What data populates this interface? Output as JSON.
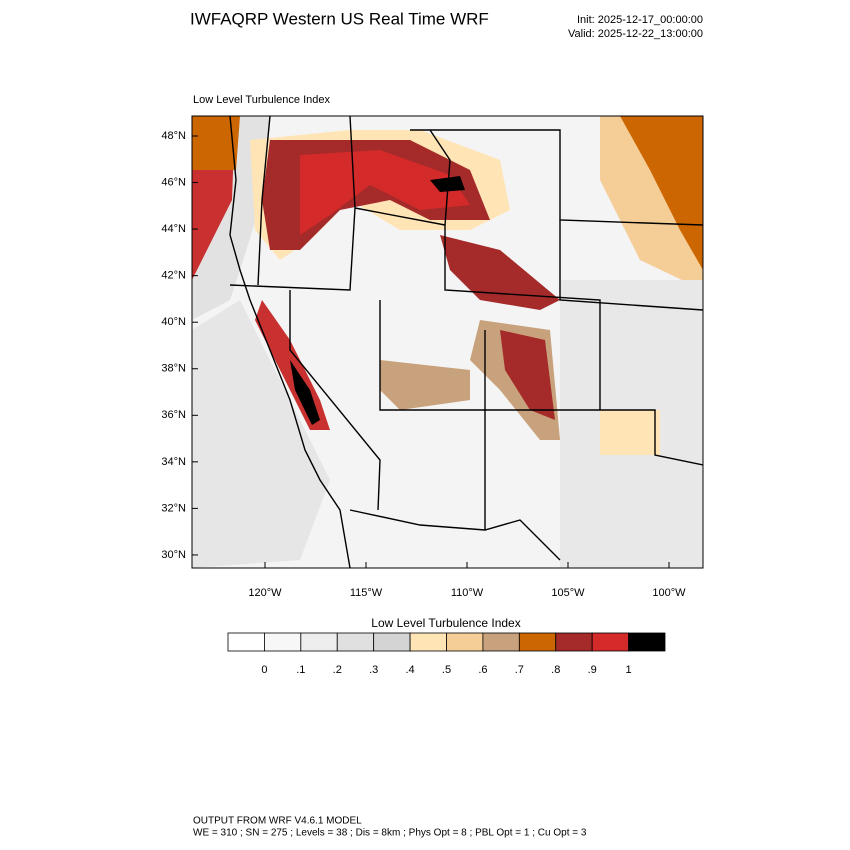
{
  "header": {
    "title": "IWFAQRP Western US Real Time WRF",
    "init": "Init: 2025-12-17_00:00:00",
    "valid": "Valid: 2025-12-22_13:00:00"
  },
  "map": {
    "subtitle": "Low Level Turbulence Index",
    "lat_labels": [
      "48°N",
      "46°N",
      "44°N",
      "42°N",
      "40°N",
      "38°N",
      "36°N",
      "34°N",
      "32°N",
      "30°N"
    ],
    "lon_labels": [
      "120°W",
      "115°W",
      "110°W",
      "105°W",
      "100°W"
    ]
  },
  "colorbar": {
    "title": "Low Level Turbulence Index",
    "labels": [
      "0",
      ".1",
      ".2",
      ".3",
      ".4",
      ".5",
      ".6",
      ".7",
      ".8",
      ".9",
      "1"
    ],
    "colors": [
      "#ffffff",
      "#f7f7f7",
      "#eeeeee",
      "#e0e0e0",
      "#d4d4d4",
      "#ffe4b5",
      "#f5cd96",
      "#c8a27c",
      "#cc6600",
      "#a52a2a",
      "#d42a2a",
      "#000000"
    ]
  },
  "footer": {
    "line1": "OUTPUT FROM WRF V4.6.1 MODEL",
    "line2": "WE = 310 ; SN = 275 ; Levels = 38 ; Dis = 8km ; Phys Opt = 8 ; PBL Opt = 1 ; Cu Opt = 3"
  }
}
